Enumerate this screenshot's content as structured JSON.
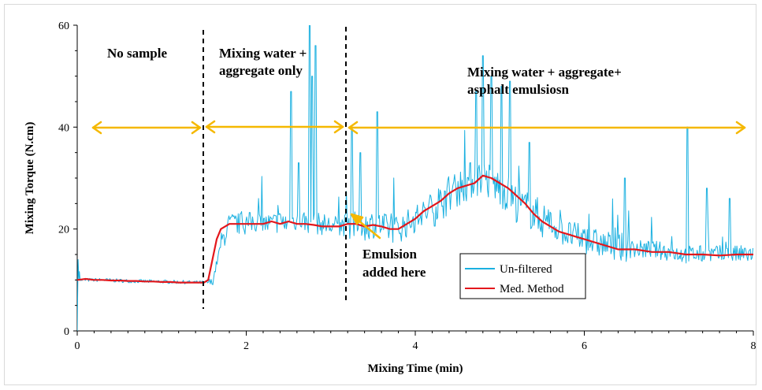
{
  "chart_data": {
    "type": "line",
    "xlabel": "Mixing Time (min)",
    "ylabel": "Mixing Torque (N.cm)",
    "xlim": [
      0,
      8
    ],
    "ylim": [
      0,
      60
    ],
    "xticks": [
      "0",
      "2",
      "4",
      "6",
      "8"
    ],
    "yticks": [
      "0",
      "20",
      "40",
      "60"
    ],
    "grid": false,
    "legend_placement": "bottom-right",
    "series": [
      {
        "name": "Un-filtered",
        "color": "#1ab0e0",
        "x": [
          0,
          0.02,
          0.03,
          0.05,
          0.3,
          0.6,
          0.9,
          1.2,
          1.45,
          1.6,
          1.7,
          1.8,
          1.9,
          2.0,
          2.1,
          2.2,
          2.3,
          2.4,
          2.5,
          2.6,
          2.7,
          2.8,
          2.9,
          3.0,
          3.1,
          3.2,
          3.3,
          3.4,
          3.5,
          3.6,
          3.7,
          3.8,
          3.9,
          4.0,
          4.1,
          4.2,
          4.3,
          4.4,
          4.5,
          4.6,
          4.7,
          4.8,
          4.9,
          5.0,
          5.1,
          5.2,
          5.3,
          5.4,
          5.5,
          5.6,
          5.7,
          5.8,
          5.9,
          6.0,
          6.2,
          6.4,
          6.6,
          6.8,
          7.0,
          7.2,
          7.4,
          7.6,
          7.8,
          8.0
        ],
        "y": [
          0,
          14,
          10,
          10,
          10,
          9.8,
          9.7,
          9.6,
          9.5,
          9.5,
          17,
          21,
          21,
          21,
          21.5,
          21,
          21,
          21.5,
          21,
          22,
          21.5,
          21,
          21,
          20.5,
          20.5,
          21,
          20.5,
          20.5,
          21,
          20.5,
          20,
          20,
          21,
          22,
          23,
          24,
          25,
          27,
          28,
          29,
          30,
          30,
          29,
          28,
          27,
          25,
          24,
          23,
          22,
          21,
          20,
          19,
          18.5,
          18,
          17,
          16.5,
          16,
          16,
          15.5,
          15,
          15,
          15,
          15,
          15
        ]
      },
      {
        "name": "Med. Method",
        "color": "#e3171c",
        "x": [
          0.0,
          0.05,
          0.1,
          0.2,
          0.3,
          0.4,
          0.5,
          0.6,
          0.7,
          0.8,
          0.9,
          1.0,
          1.1,
          1.2,
          1.3,
          1.4,
          1.5,
          1.55,
          1.6,
          1.65,
          1.7,
          1.8,
          1.9,
          2.0,
          2.1,
          2.2,
          2.3,
          2.4,
          2.5,
          2.6,
          2.7,
          2.8,
          2.9,
          3.0,
          3.1,
          3.2,
          3.3,
          3.4,
          3.5,
          3.6,
          3.7,
          3.8,
          3.9,
          4.0,
          4.1,
          4.2,
          4.3,
          4.4,
          4.5,
          4.6,
          4.7,
          4.8,
          4.9,
          5.0,
          5.1,
          5.2,
          5.3,
          5.4,
          5.5,
          5.6,
          5.7,
          5.8,
          5.9,
          6.0,
          6.2,
          6.4,
          6.6,
          6.8,
          7.0,
          7.2,
          7.4,
          7.6,
          7.8,
          8.0
        ],
        "y": [
          10,
          10.1,
          10.2,
          10,
          10,
          9.9,
          9.9,
          9.8,
          9.8,
          9.7,
          9.7,
          9.6,
          9.6,
          9.5,
          9.5,
          9.5,
          9.5,
          10,
          14,
          18,
          20,
          21,
          21,
          21,
          21,
          21,
          21.5,
          21,
          21.5,
          21,
          21,
          20.8,
          20.5,
          20.5,
          20.5,
          21,
          21,
          20.5,
          20.8,
          20.5,
          20,
          20,
          21,
          22,
          23.5,
          24.5,
          25.5,
          27,
          28,
          28.5,
          29,
          30.5,
          30,
          29,
          28,
          26.5,
          25,
          23,
          21.5,
          20.5,
          19.5,
          19,
          18.5,
          18,
          17,
          16,
          16,
          15.5,
          15.5,
          15,
          15,
          14.8,
          15,
          15
        ]
      }
    ],
    "annotations": [
      {
        "lines": [
          "No sample"
        ]
      },
      {
        "lines": [
          "Mixing water +",
          "aggregate only"
        ]
      },
      {
        "lines": [
          "Mixing water + aggregate+",
          "asphalt emulsiosn"
        ]
      },
      {
        "lines": [
          "Emulsion",
          "added here"
        ]
      }
    ],
    "legend": [
      {
        "label": "Un-filtered",
        "color": "#1ab0e0"
      },
      {
        "label": "Med. Method",
        "color": "#e3171c"
      }
    ],
    "colors": {
      "arrows": "#f5b800",
      "dividers": "#000000"
    }
  }
}
